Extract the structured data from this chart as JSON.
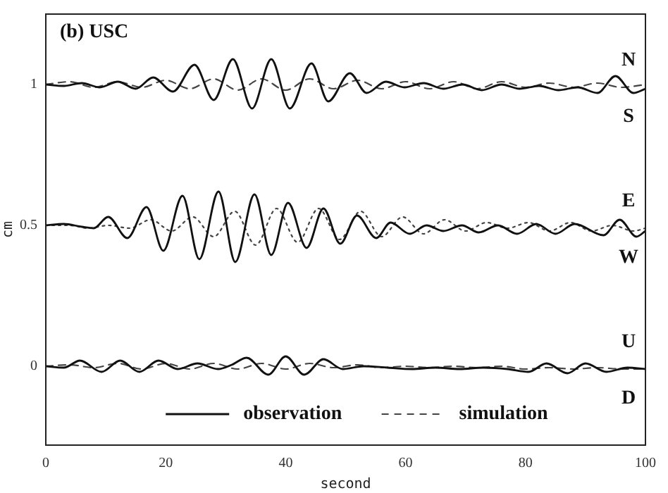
{
  "chart_data": {
    "type": "line",
    "title": "(b) USC",
    "xlabel": "second",
    "ylabel": "cm",
    "xlim": [
      0,
      100
    ],
    "xticks": [
      0,
      20,
      40,
      60,
      80,
      100
    ],
    "ylim": [
      -0.28,
      1.25
    ],
    "yticks": [
      0,
      0.5,
      1
    ],
    "grid": false,
    "legend": "bottom",
    "marker": "none",
    "annotations": [
      "N",
      "S",
      "E",
      "W",
      "U",
      "D"
    ],
    "series": [
      {
        "name": "observation",
        "color": "#111111",
        "line_style": "solid",
        "x": [
          0,
          3,
          6,
          9,
          12,
          15,
          17.9,
          21.2,
          24.8,
          28,
          31.2,
          34.4,
          37.6,
          40.7,
          44.3,
          47.1,
          50.7,
          53.5,
          56.7,
          59.8,
          63,
          66.3,
          69.5,
          72.7,
          76,
          79,
          82.3,
          85.5,
          88.7,
          92,
          95,
          98,
          100
        ],
        "values": [
          1.0,
          0.995,
          1.005,
          0.99,
          1.01,
          0.985,
          1.025,
          0.975,
          1.07,
          0.945,
          1.09,
          0.915,
          1.09,
          0.915,
          1.075,
          0.94,
          1.04,
          0.97,
          1.01,
          0.99,
          1.005,
          0.985,
          1.0,
          0.98,
          1.0,
          0.985,
          0.995,
          0.98,
          0.99,
          0.97,
          1.03,
          0.97,
          0.985
        ]
      },
      {
        "name": "simulation",
        "color": "#444444",
        "line_style": "dashed",
        "x": [
          0,
          4,
          8,
          12,
          16,
          20,
          24,
          28,
          32,
          36,
          40,
          44,
          48,
          52,
          56,
          60,
          64,
          68,
          72,
          76,
          80,
          84,
          88,
          92,
          96,
          100
        ],
        "values": [
          1.0,
          1.01,
          0.99,
          1.01,
          0.99,
          1.015,
          0.985,
          1.02,
          0.98,
          1.02,
          0.98,
          1.02,
          0.985,
          1.015,
          0.985,
          1.01,
          0.985,
          1.01,
          0.985,
          1.01,
          0.99,
          1.005,
          0.99,
          1.005,
          0.99,
          1.0
        ]
      },
      {
        "color": "#111111",
        "line_style": "solid",
        "x": [
          0,
          3,
          6,
          8,
          10.4,
          13.6,
          16.8,
          19.6,
          22.8,
          25.6,
          28.8,
          31.6,
          34.8,
          37.6,
          40.4,
          43.5,
          46.3,
          49.1,
          51.9,
          55.1,
          57.5,
          60.7,
          63.5,
          66.3,
          69.4,
          72.2,
          75.4,
          78.6,
          81.8,
          85,
          88.2,
          93,
          95.7,
          98.5,
          100
        ],
        "values": [
          0.5,
          0.505,
          0.495,
          0.49,
          0.53,
          0.455,
          0.565,
          0.41,
          0.605,
          0.38,
          0.62,
          0.37,
          0.61,
          0.395,
          0.58,
          0.42,
          0.56,
          0.435,
          0.535,
          0.455,
          0.51,
          0.47,
          0.5,
          0.48,
          0.5,
          0.475,
          0.5,
          0.47,
          0.505,
          0.47,
          0.505,
          0.465,
          0.52,
          0.46,
          0.48
        ]
      },
      {
        "color": "#444444",
        "line_style": "dotted",
        "x": [
          0,
          4,
          7,
          10.5,
          14,
          17.5,
          21,
          24.5,
          28,
          31.5,
          35,
          38.5,
          42,
          45.5,
          49,
          52.5,
          56,
          59.5,
          63,
          66.5,
          70,
          73.5,
          77,
          80.5,
          84,
          87.5,
          91,
          94.5,
          98,
          100
        ],
        "values": [
          0.5,
          0.5,
          0.49,
          0.5,
          0.49,
          0.52,
          0.48,
          0.53,
          0.46,
          0.55,
          0.43,
          0.56,
          0.44,
          0.56,
          0.45,
          0.55,
          0.46,
          0.53,
          0.47,
          0.52,
          0.48,
          0.51,
          0.49,
          0.51,
          0.48,
          0.51,
          0.48,
          0.5,
          0.48,
          0.49
        ]
      },
      {
        "color": "#111111",
        "line_style": "solid",
        "x": [
          0,
          3,
          5.7,
          9.3,
          12.4,
          15.6,
          18.8,
          22,
          25.3,
          28.7,
          31,
          33.5,
          37.1,
          40,
          43.1,
          46.3,
          49.5,
          53,
          57,
          61,
          65,
          69,
          73,
          77,
          80.5,
          83.5,
          87,
          90,
          93.5,
          97,
          100
        ],
        "values": [
          0,
          -0.005,
          0.02,
          -0.02,
          0.02,
          -0.02,
          0.02,
          -0.01,
          0.01,
          -0.01,
          0.005,
          0.03,
          -0.03,
          0.035,
          -0.03,
          0.025,
          -0.01,
          0.0,
          -0.005,
          -0.01,
          -0.005,
          -0.01,
          -0.005,
          -0.01,
          -0.02,
          0.01,
          -0.025,
          0.01,
          -0.02,
          -0.005,
          -0.01
        ]
      },
      {
        "color": "#444444",
        "line_style": "dashed",
        "x": [
          0,
          4,
          8,
          12,
          16,
          20,
          24,
          28,
          32,
          36,
          40,
          44,
          48,
          52,
          56,
          60,
          64,
          68,
          72,
          76,
          80,
          84,
          88,
          92,
          96,
          100
        ],
        "values": [
          0,
          0.005,
          -0.005,
          0.01,
          -0.01,
          0.01,
          -0.01,
          0.01,
          -0.01,
          0.01,
          -0.01,
          0.01,
          -0.005,
          0.005,
          -0.005,
          0,
          -0.005,
          0,
          -0.005,
          0,
          -0.01,
          -0.005,
          -0.01,
          -0.005,
          -0.01,
          -0.01
        ]
      }
    ]
  }
}
